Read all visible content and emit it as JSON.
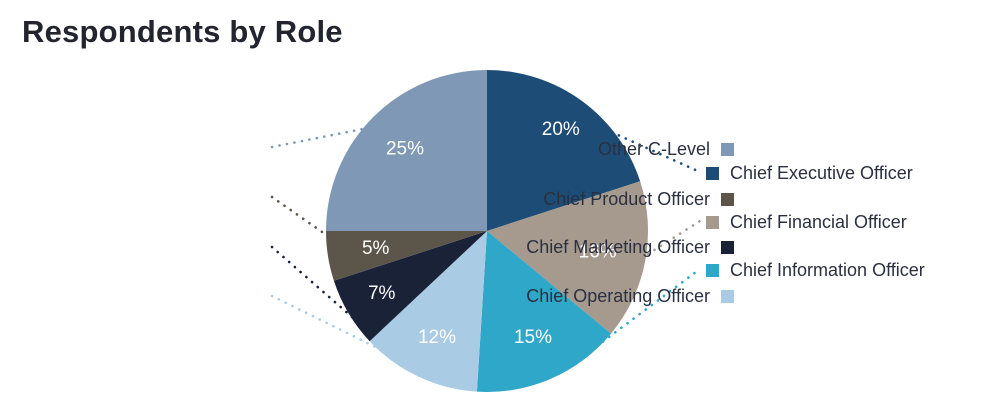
{
  "title": "Respondents by Role",
  "chart_data": {
    "type": "pie",
    "title": "Respondents by Role",
    "start_angle_deg": 0,
    "direction": "clockwise",
    "total": 100,
    "slices": [
      {
        "label": "Chief Executive Officer",
        "value": 20,
        "display": "20%",
        "color": "#1d4d77",
        "legend_side": "right"
      },
      {
        "label": "Chief Financial Officer",
        "value": 16,
        "display": "16%",
        "color": "#a59a8d",
        "legend_side": "right"
      },
      {
        "label": "Chief Information Officer",
        "value": 15,
        "display": "15%",
        "color": "#2fa7c9",
        "legend_side": "right"
      },
      {
        "label": "Chief Operating Officer",
        "value": 12,
        "display": "12%",
        "color": "#aacbe4",
        "legend_side": "left"
      },
      {
        "label": "Chief Marketing Officer",
        "value": 7,
        "display": "7%",
        "color": "#1a2238",
        "legend_side": "left"
      },
      {
        "label": "Chief Product Officer",
        "value": 5,
        "display": "5%",
        "color": "#5c564a",
        "legend_side": "left"
      },
      {
        "label": "Other C-Level",
        "value": 25,
        "display": "25%",
        "color": "#7e98b6",
        "legend_side": "left"
      }
    ],
    "value_label_color": "#ffffff",
    "legend_left_order": [
      "Other C-Level",
      "Chief Product Officer",
      "Chief Marketing Officer",
      "Chief Operating Officer"
    ],
    "legend_right_order": [
      "Chief Executive Officer",
      "Chief Financial Officer",
      "Chief Information Officer"
    ],
    "legend_position": "both-sides",
    "grid": false
  },
  "colors": {
    "title_text": "#22252e",
    "legend_text": "#2b3040",
    "background": "#ffffff"
  }
}
